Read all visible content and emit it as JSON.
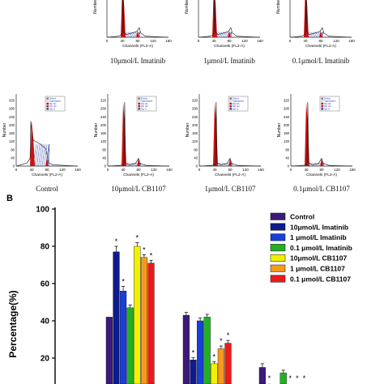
{
  "panel_b_label": "B",
  "histograms": {
    "y_label": "Number",
    "x_label": "Channels (FL2-A)",
    "x_ticks": [
      "0",
      "40",
      "80",
      "120",
      "160"
    ],
    "legend": [
      "Debris",
      "Aggregates",
      "Dip G1",
      "Dip G2",
      "Dip S"
    ],
    "colors": {
      "g1": "#cc1111",
      "s": "#3344aa",
      "debris": "#888888"
    },
    "rows": [
      {
        "y_ticks": [],
        "panels": [
          {
            "caption": "10μmol/L Imatinib",
            "profile": "treated"
          },
          {
            "caption": "1μmol/L Imatinib",
            "profile": "treated"
          },
          {
            "caption": "0.1μmol/L Imatinib",
            "profile": "treated"
          }
        ]
      },
      {
        "y_ticks": [
          "0",
          "40",
          "80",
          "120",
          "160",
          "200",
          "240",
          "280",
          "320"
        ],
        "panels": [
          {
            "caption": "Control",
            "profile": "control"
          },
          {
            "caption": "10μmol/L CB1107",
            "profile": "arrested"
          },
          {
            "caption": "1μmol/L CB1107",
            "profile": "arrested"
          },
          {
            "caption": "0.1μmol/L CB1107",
            "profile": "arrested"
          }
        ]
      }
    ]
  },
  "chart_data": {
    "type": "bar",
    "ylabel": "Percentage(%)",
    "ylim": [
      0,
      100
    ],
    "ylim_visible": [
      20,
      100
    ],
    "yticks": [
      20,
      40,
      60,
      80,
      100
    ],
    "legend_position": "top-right",
    "series": [
      {
        "name": "Control",
        "color": "#3b1a7a",
        "values": [
          42,
          43,
          15
        ],
        "errors": [
          0,
          1.5,
          2
        ],
        "sig": [
          "",
          "",
          ""
        ]
      },
      {
        "name": "10μmol/L  Imatinib",
        "color": "#0f1a8c",
        "values": [
          77,
          19,
          5
        ],
        "errors": [
          3,
          1.2,
          1
        ],
        "sig": [
          "*",
          "*",
          "*"
        ]
      },
      {
        "name": "1  μmol/L  Imatinib",
        "color": "#1a3fd9",
        "values": [
          56,
          40,
          4
        ],
        "errors": [
          2.5,
          1.5,
          1
        ],
        "sig": [
          "*",
          "",
          ""
        ]
      },
      {
        "name": "0.1 μmol/L  Imatinib",
        "color": "#22b022",
        "values": [
          47,
          42,
          12
        ],
        "errors": [
          1.5,
          1.5,
          1.5
        ],
        "sig": [
          "",
          "",
          ""
        ]
      },
      {
        "name": "10μmol/L  CB1107",
        "color": "#f2f200",
        "values": [
          80,
          17,
          3
        ],
        "errors": [
          2,
          1,
          0.5
        ],
        "sig": [
          "*",
          "*",
          "*"
        ]
      },
      {
        "name": "1  μmol/L  CB1107",
        "color": "#f59a1e",
        "values": [
          74,
          25,
          2
        ],
        "errors": [
          1.5,
          1.5,
          0.5
        ],
        "sig": [
          "*",
          "*",
          "*"
        ]
      },
      {
        "name": "0.1 μmol/L  CB1107",
        "color": "#ee1a1a",
        "values": [
          71,
          28,
          1
        ],
        "errors": [
          1.5,
          1.5,
          0.5
        ],
        "sig": [
          "*",
          "*",
          "*"
        ]
      }
    ]
  }
}
